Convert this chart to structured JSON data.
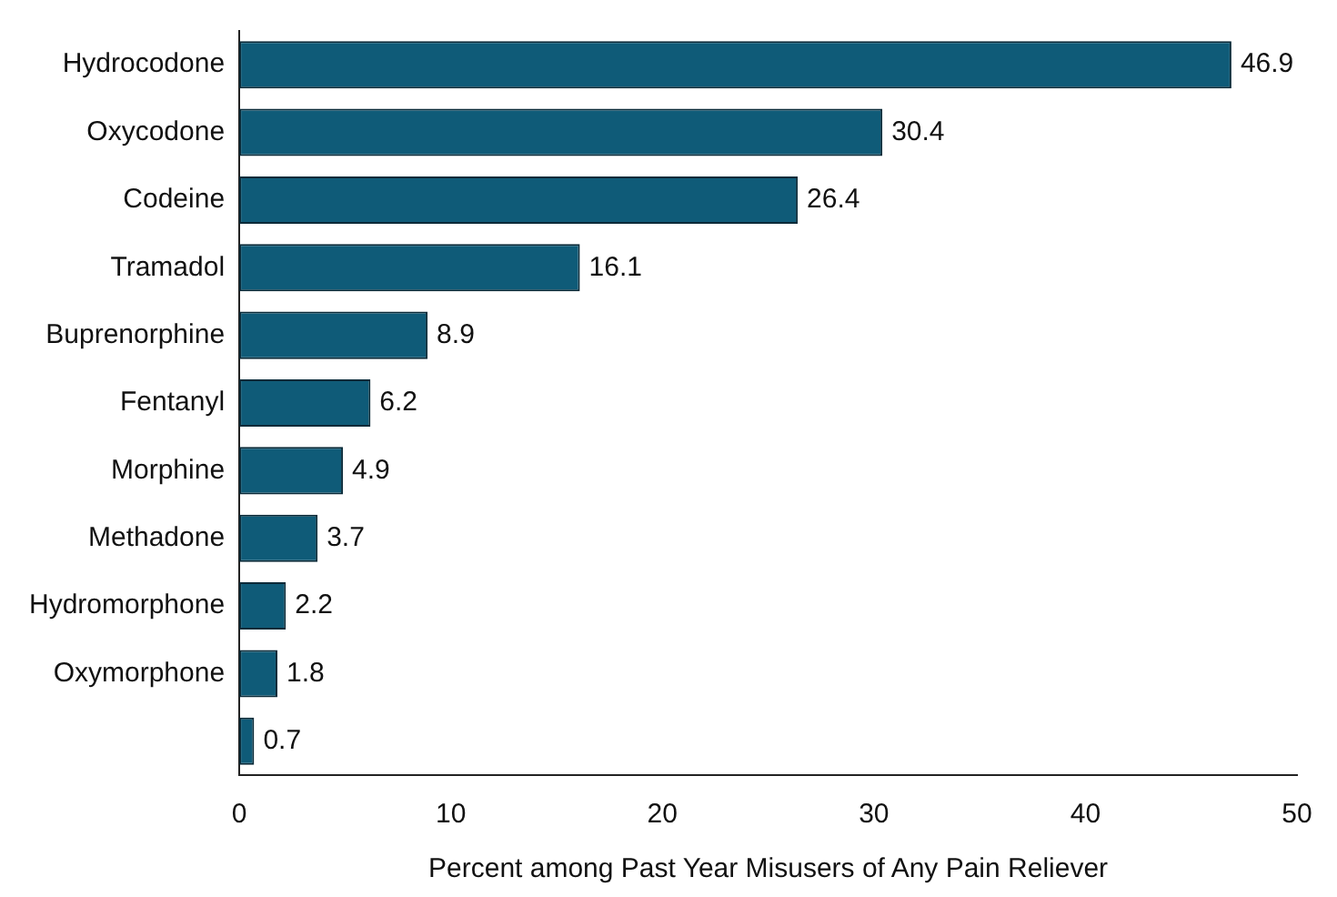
{
  "chart_data": {
    "type": "bar",
    "orientation": "horizontal",
    "xlabel": "Percent among Past Year Misusers of Any Pain Reliever",
    "categories": [
      "Hydrocodone",
      "Oxycodone",
      "Codeine",
      "Tramadol",
      "Buprenorphine",
      "Fentanyl",
      "Morphine",
      "Methadone",
      "Hydromorphone",
      "Oxymorphone",
      null
    ],
    "values": [
      46.9,
      30.4,
      26.4,
      16.1,
      8.9,
      6.2,
      4.9,
      3.7,
      2.2,
      1.8,
      0.7
    ],
    "color": "#0f5b78",
    "xlim": [
      0,
      50
    ],
    "xticks": [
      0,
      10,
      20,
      30,
      40,
      50
    ],
    "grid": false,
    "legend": false,
    "data_labels": true
  }
}
